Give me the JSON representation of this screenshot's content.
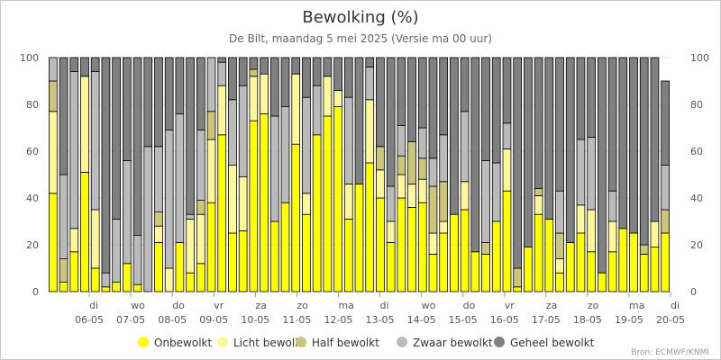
{
  "chart_data": {
    "type": "bar",
    "stacked": true,
    "title": "Bewolking (%)",
    "subtitle": "De Bilt, maandag 5 mei 2025 (Versie ma 00 uur)",
    "ylim": [
      0,
      100
    ],
    "y_ticks": [
      "0",
      "20",
      "40",
      "60",
      "80",
      "100"
    ],
    "grid": true,
    "legend_position": "bottom",
    "credits": "Bron: ECMWF/KNMI",
    "day_labels": [
      {
        "day": "di",
        "date": "06-05"
      },
      {
        "day": "wo",
        "date": "07-05"
      },
      {
        "day": "do",
        "date": "08-05"
      },
      {
        "day": "vr",
        "date": "09-05"
      },
      {
        "day": "za",
        "date": "10-05"
      },
      {
        "day": "zo",
        "date": "11-05"
      },
      {
        "day": "ma",
        "date": "12-05"
      },
      {
        "day": "di",
        "date": "13-05"
      },
      {
        "day": "wo",
        "date": "14-05"
      },
      {
        "day": "do",
        "date": "15-05"
      },
      {
        "day": "vr",
        "date": "16-05"
      },
      {
        "day": "za",
        "date": "17-05"
      },
      {
        "day": "zo",
        "date": "18-05"
      },
      {
        "day": "ma",
        "date": "19-05"
      },
      {
        "day": "di",
        "date": "20-05"
      }
    ],
    "series": [
      {
        "name": "Onbewolkt",
        "color": "#ffff00",
        "values": [
          42,
          4,
          17,
          51,
          10,
          2,
          4,
          12,
          3,
          0,
          21,
          0,
          21,
          8,
          12,
          38,
          67,
          25,
          26,
          73,
          76,
          30,
          38,
          63,
          33,
          67,
          75,
          79,
          31,
          46,
          55,
          40,
          21,
          40,
          36,
          38,
          16,
          25,
          33,
          35,
          17,
          16,
          30,
          43,
          2,
          19,
          33,
          31,
          8,
          21,
          25,
          17,
          8,
          17,
          27,
          25,
          16,
          19,
          25
        ]
      },
      {
        "name": "Licht bewolkt",
        "color": "#fff799",
        "values": [
          35,
          0,
          10,
          41,
          25,
          0,
          0,
          0,
          0,
          0,
          7,
          10,
          0,
          23,
          21,
          27,
          21,
          29,
          23,
          19,
          17,
          0,
          0,
          30,
          9,
          0,
          17,
          7,
          15,
          0,
          27,
          12,
          9,
          10,
          10,
          10,
          9,
          5,
          0,
          12,
          0,
          0,
          0,
          18,
          0,
          0,
          8,
          0,
          6,
          0,
          12,
          18,
          0,
          13,
          0,
          0,
          0,
          11,
          0
        ]
      },
      {
        "name": "Half bewolkt",
        "color": "#ccc57a",
        "values": [
          13,
          10,
          0,
          0,
          0,
          0,
          0,
          0,
          0,
          0,
          6,
          0,
          0,
          0,
          6,
          12,
          0,
          0,
          0,
          3,
          0,
          0,
          0,
          0,
          0,
          0,
          0,
          0,
          0,
          0,
          0,
          10,
          0,
          8,
          18,
          9,
          20,
          17,
          0,
          0,
          0,
          5,
          0,
          0,
          8,
          0,
          3,
          0,
          11,
          0,
          0,
          0,
          0,
          0,
          0,
          0,
          4,
          0,
          10
        ]
      },
      {
        "name": "Zwaar bewolkt",
        "color": "#bbbbbb",
        "values": [
          10,
          36,
          67,
          0,
          59,
          6,
          27,
          44,
          21,
          62,
          28,
          59,
          55,
          2,
          30,
          23,
          10,
          28,
          39,
          0,
          0,
          45,
          41,
          0,
          41,
          21,
          0,
          0,
          37,
          0,
          14,
          0,
          15,
          13,
          0,
          13,
          12,
          20,
          0,
          30,
          0,
          35,
          25,
          11,
          0,
          0,
          0,
          0,
          18,
          0,
          28,
          31,
          0,
          13,
          0,
          0,
          0,
          0,
          19
        ]
      },
      {
        "name": "Geheel bewolkt",
        "color": "#808080",
        "values": [
          0,
          50,
          6,
          8,
          6,
          92,
          69,
          44,
          76,
          38,
          38,
          31,
          24,
          67,
          31,
          0,
          2,
          18,
          12,
          5,
          7,
          25,
          21,
          7,
          17,
          12,
          8,
          14,
          17,
          54,
          4,
          38,
          55,
          29,
          36,
          30,
          43,
          33,
          67,
          23,
          83,
          44,
          45,
          28,
          90,
          81,
          56,
          69,
          57,
          79,
          35,
          34,
          92,
          57,
          73,
          75,
          80,
          70,
          36
        ]
      }
    ]
  }
}
